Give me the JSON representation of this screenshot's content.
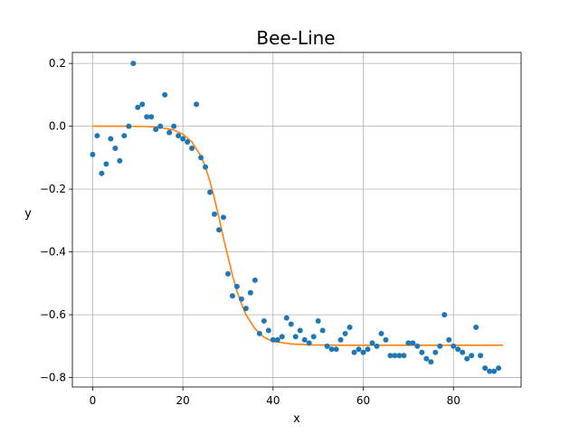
{
  "chart_data": {
    "type": "scatter",
    "title": "Bee-Line",
    "xlabel": "x",
    "ylabel": "y",
    "xlim": [
      -4.5,
      95
    ],
    "ylim": [
      -0.83,
      0.235
    ],
    "x_ticks": [
      0,
      20,
      40,
      60,
      80
    ],
    "y_ticks": [
      -0.8,
      -0.6,
      -0.4,
      -0.2,
      0.0,
      0.2
    ],
    "x_tick_labels": [
      "0",
      "20",
      "40",
      "60",
      "80"
    ],
    "y_tick_labels": [
      "−0.8",
      "−0.6",
      "−0.4",
      "−0.2",
      "0.0",
      "0.2"
    ],
    "grid": true,
    "series": [
      {
        "kind": "scatter",
        "color": "#1f77b4",
        "x": [
          0,
          1,
          2,
          3,
          4,
          5,
          6,
          7,
          8,
          9,
          10,
          11,
          12,
          13,
          14,
          15,
          16,
          17,
          18,
          19,
          20,
          21,
          22,
          23,
          24,
          25,
          26,
          27,
          28,
          29,
          30,
          31,
          32,
          33,
          34,
          35,
          36,
          37,
          38,
          39,
          40,
          41,
          42,
          43,
          44,
          45,
          46,
          47,
          48,
          49,
          50,
          51,
          52,
          53,
          54,
          55,
          56,
          57,
          58,
          59,
          60,
          61,
          62,
          63,
          64,
          65,
          66,
          67,
          68,
          69,
          70,
          71,
          72,
          73,
          74,
          75,
          76,
          77,
          78,
          79,
          80,
          81,
          82,
          83,
          84,
          85,
          86,
          87,
          88,
          89,
          90
        ],
        "y": [
          -0.09,
          -0.03,
          -0.15,
          -0.12,
          -0.04,
          -0.07,
          -0.11,
          -0.03,
          0.0,
          0.2,
          0.06,
          0.07,
          0.03,
          0.03,
          -0.01,
          0.0,
          0.1,
          -0.02,
          0.0,
          -0.03,
          -0.04,
          -0.05,
          -0.07,
          0.07,
          -0.1,
          -0.13,
          -0.21,
          -0.28,
          -0.33,
          -0.29,
          -0.47,
          -0.54,
          -0.51,
          -0.55,
          -0.58,
          -0.53,
          -0.49,
          -0.66,
          -0.62,
          -0.65,
          -0.68,
          -0.68,
          -0.67,
          -0.61,
          -0.63,
          -0.67,
          -0.65,
          -0.68,
          -0.69,
          -0.67,
          -0.62,
          -0.65,
          -0.7,
          -0.71,
          -0.71,
          -0.68,
          -0.66,
          -0.64,
          -0.72,
          -0.71,
          -0.72,
          -0.71,
          -0.69,
          -0.7,
          -0.66,
          -0.68,
          -0.73,
          -0.73,
          -0.73,
          -0.73,
          -0.69,
          -0.69,
          -0.7,
          -0.72,
          -0.74,
          -0.75,
          -0.72,
          -0.7,
          -0.6,
          -0.68,
          -0.7,
          -0.71,
          -0.72,
          -0.74,
          -0.73,
          -0.64,
          -0.73,
          -0.77,
          -0.78,
          -0.78,
          -0.77
        ]
      },
      {
        "kind": "line",
        "color": "#ff7f0e",
        "x": [
          0,
          4,
          8,
          12,
          15,
          18,
          20,
          22,
          24,
          25,
          26,
          27,
          28,
          29,
          30,
          31,
          32,
          33,
          34,
          36,
          38,
          40,
          44,
          48,
          55,
          65,
          80,
          91
        ],
        "y": [
          0.0,
          0.0,
          0.0,
          -0.001,
          -0.004,
          -0.012,
          -0.025,
          -0.05,
          -0.095,
          -0.13,
          -0.175,
          -0.23,
          -0.29,
          -0.355,
          -0.415,
          -0.475,
          -0.525,
          -0.565,
          -0.6,
          -0.645,
          -0.672,
          -0.685,
          -0.693,
          -0.696,
          -0.697,
          -0.697,
          -0.697,
          -0.697
        ]
      }
    ]
  }
}
